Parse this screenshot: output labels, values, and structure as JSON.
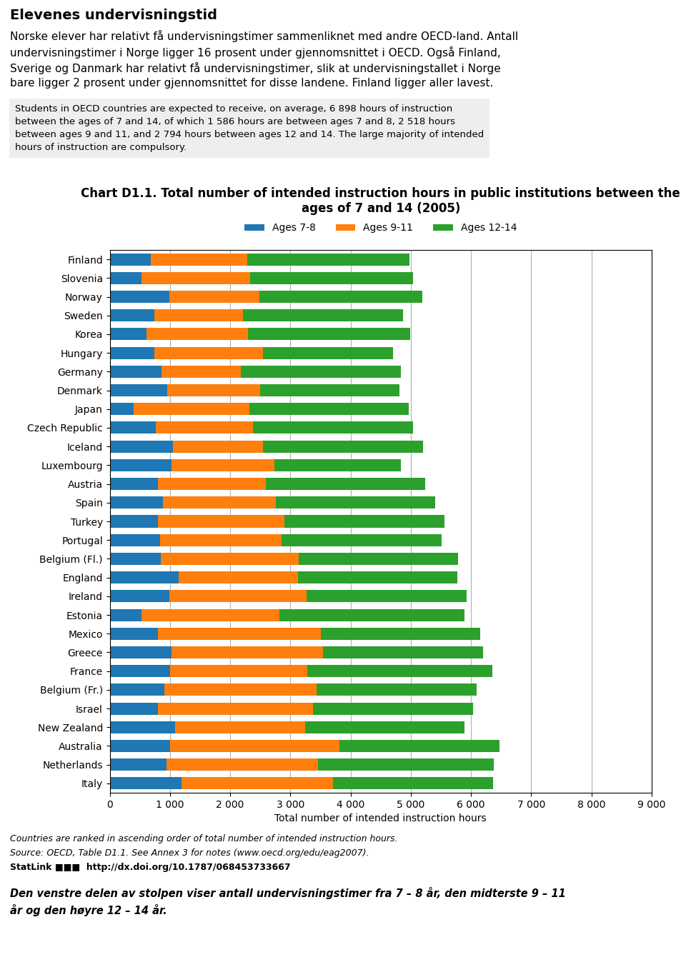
{
  "chart_data": {
    "type": "bar",
    "orientation": "horizontal",
    "stacked": true,
    "title": "Chart D1.1. Total number of intended instruction hours in public institutions between the ages of 7 and 14 (2005)",
    "x_label": "Total number of intended instruction hours",
    "annotations": [
      "Elevenes undervisningstid",
      "Norske elever har relativt få undervisningstimer sammenliknet med andre OECD-land. Antall\nundervisningstimer i Norge ligger 16 prosent under gjennomsnittet i OECD. Også Finland,\nSverige og Danmark har relativt få undervisningstimer, slik at undervisningstallet i Norge\nbare ligger 2 prosent under gjennomsnittet for disse landene. Finland ligger aller lavest.",
      "Students in OECD countries are expected to receive, on average, 6 898 hours of instruction\nbetween the ages of 7 and 14, of which 1 586 hours are between ages 7 and 8, 2 518 hours\nbetween ages 9 and 11, and 2 794 hours between ages 12 and 14. The large majority of intended\nhours of instruction are compulsory.",
      "Countries are ranked in ascending order of total number of intended instruction hours.",
      "Source: OECD, Table D1.1. See Annex 3 for notes (www.oecd.org/edu/eag2007).",
      "StatLink ■■■  http://dx.doi.org/10.1787/068453733667",
      "Den venstre delen av stolpen viser antall undervisningstimer fra 7 – 8 år, den midterste 9 – 11\når og den høyre 12 – 14 år."
    ],
    "categories": [
      "Finland",
      "Slovenia",
      "Norway",
      "Sweden",
      "Korea",
      "Hungary",
      "Germany",
      "Denmark",
      "Japan",
      "Czech Republic",
      "Iceland",
      "Luxembourg",
      "Austria",
      "Spain",
      "Turkey",
      "Portugal",
      "Belgium (Fl.)",
      "England",
      "Ireland",
      "Estonia",
      "Mexico",
      "Greece",
      "France",
      "Belgium (Fr.)",
      "Israel",
      "New Zealand",
      "Australia",
      "Netherlands",
      "Italy"
    ],
    "series": [
      {
        "name": "Ages 7-8",
        "values": [
          684,
          532,
          988,
          741,
          612,
          736,
          855,
          960,
          394,
          764,
          1044,
          1020,
          800,
          880,
          800,
          840,
          852,
          1140,
          988,
          532,
          800,
          1020,
          1000,
          912,
          800,
          1080,
          1000,
          940,
          1188
        ]
      },
      {
        "name": "Ages 9-11",
        "values": [
          1596,
          1800,
          1500,
          1470,
          1680,
          1812,
          1320,
          1536,
          1920,
          1620,
          1500,
          1716,
          1788,
          1872,
          2100,
          2016,
          2280,
          1980,
          2280,
          2280,
          2700,
          2520,
          2280,
          2520,
          2580,
          2160,
          2820,
          2520,
          2520
        ]
      },
      {
        "name": "Ages 12-14",
        "values": [
          2700,
          2700,
          2700,
          2655,
          2700,
          2160,
          2655,
          2313,
          2655,
          2655,
          2655,
          2100,
          2655,
          2655,
          2655,
          2655,
          2655,
          2655,
          2655,
          3078,
          2655,
          2655,
          3078,
          2655,
          2655,
          2655,
          2655,
          2920,
          2655
        ]
      }
    ],
    "xlim": [
      0,
      9000
    ],
    "xticks": [
      0,
      {
        "value": 1000,
        "label": "1 000"
      },
      {
        "value": 2000,
        "label": "2 000"
      },
      {
        "value": 3000,
        "label": "3 000"
      },
      {
        "value": 4000,
        "label": "4 000"
      },
      {
        "value": 5000,
        "label": "5 000"
      },
      {
        "value": 6000,
        "label": "6 000"
      },
      {
        "value": 7000,
        "label": "7 000"
      },
      {
        "value": 8000,
        "label": "8 000"
      },
      {
        "value": 9000,
        "label": "9 000"
      }
    ],
    "grid": true,
    "legend": "upper center"
  }
}
